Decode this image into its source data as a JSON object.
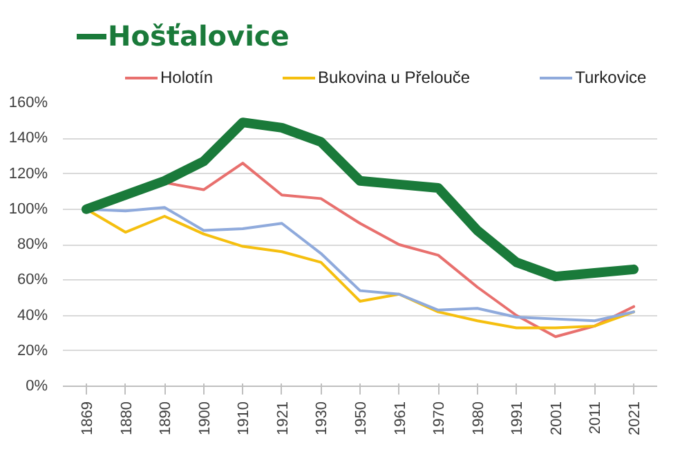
{
  "chart_data": {
    "type": "line",
    "categories": [
      "1869",
      "1880",
      "1890",
      "1900",
      "1910",
      "1921",
      "1930",
      "1950",
      "1961",
      "1970",
      "1980",
      "1991",
      "2001",
      "2011",
      "2021"
    ],
    "series": [
      {
        "name": "Hošťalovice",
        "color": "#1a7a3a",
        "values": [
          100,
          108,
          116,
          127,
          149,
          146,
          138,
          116,
          114,
          112,
          88,
          70,
          62,
          64,
          66
        ]
      },
      {
        "name": "Holotín",
        "color": "#e8706e",
        "values": [
          null,
          null,
          115,
          111,
          126,
          108,
          106,
          92,
          80,
          74,
          56,
          40,
          28,
          34,
          45
        ]
      },
      {
        "name": "Bukovina u Přelouče",
        "color": "#f5bf0f",
        "values": [
          100,
          87,
          96,
          86,
          79,
          76,
          70,
          48,
          52,
          42,
          37,
          33,
          33,
          34,
          42
        ]
      },
      {
        "name": "Turkovice",
        "color": "#8faadc",
        "values": [
          100,
          99,
          101,
          88,
          89,
          92,
          75,
          54,
          52,
          43,
          44,
          39,
          38,
          37,
          42
        ]
      }
    ],
    "ylim": [
      0,
      160
    ],
    "yticks": [
      {
        "value": 0,
        "label": "0%"
      },
      {
        "value": 20,
        "label": "20%"
      },
      {
        "value": 40,
        "label": "40%"
      },
      {
        "value": 60,
        "label": "60%"
      },
      {
        "value": 80,
        "label": "80%"
      },
      {
        "value": 100,
        "label": "100%"
      },
      {
        "value": 120,
        "label": "120%"
      },
      {
        "value": 140,
        "label": "140%"
      },
      {
        "value": 160,
        "label": "160%"
      }
    ],
    "grid": "y",
    "legend": "top",
    "line_style": "solid",
    "marker": "none"
  }
}
